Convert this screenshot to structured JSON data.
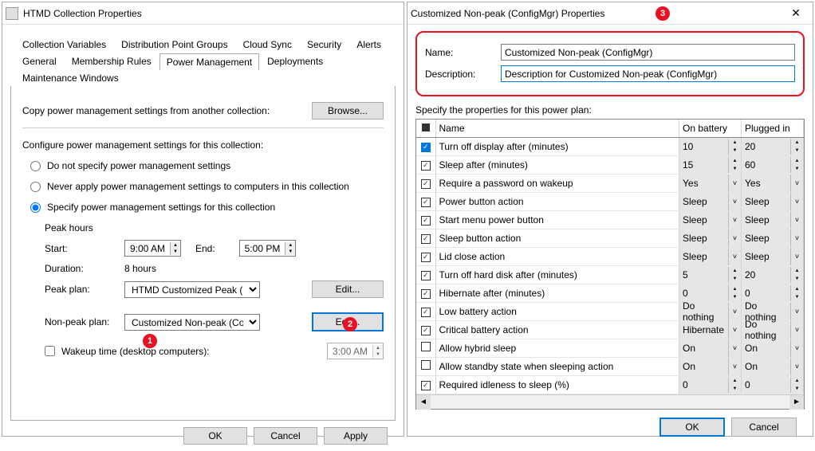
{
  "left": {
    "title": "HTMD Collection Properties",
    "tabs_row1": [
      "Collection Variables",
      "Distribution Point Groups",
      "Cloud Sync",
      "Security",
      "Alerts"
    ],
    "tabs_row2": [
      "General",
      "Membership Rules",
      "Power Management",
      "Deployments",
      "Maintenance Windows"
    ],
    "active_tab": "Power Management",
    "copy_label": "Copy power management settings from another collection:",
    "browse": "Browse...",
    "configure_label": "Configure power management settings for this collection:",
    "radio1": "Do not specify power management settings",
    "radio2": "Never apply power management settings to computers in this collection",
    "radio3": "Specify power management settings for this collection",
    "radio_selected": 3,
    "peak_hours_label": "Peak hours",
    "start_label": "Start:",
    "start_value": "9:00 AM",
    "end_label": "End:",
    "end_value": "5:00 PM",
    "duration_label": "Duration:",
    "duration_value": "8 hours",
    "peak_plan_label": "Peak plan:",
    "peak_plan_value": "HTMD Customized Peak (Con",
    "edit": "Edit...",
    "nonpeak_label": "Non-peak plan:",
    "nonpeak_value": "Customized Non-peak (Config",
    "wakeup_label": "Wakeup time (desktop computers):",
    "wakeup_value": "3:00 AM",
    "ok": "OK",
    "cancel": "Cancel",
    "apply": "Apply"
  },
  "right": {
    "title": "Customized Non-peak (ConfigMgr) Properties",
    "name_label": "Name:",
    "name_value": "Customized Non-peak (ConfigMgr)",
    "desc_label": "Description:",
    "desc_value": "Description for Customized Non-peak (ConfigMgr)",
    "specify_label": "Specify the properties for this power plan:",
    "col_name": "Name",
    "col_bat": "On battery",
    "col_plug": "Plugged in",
    "rows": [
      {
        "chk": true,
        "filled": true,
        "name": "Turn off display after (minutes)",
        "bat": "10",
        "plug": "20",
        "ctrl": "spin"
      },
      {
        "chk": true,
        "filled": false,
        "name": "Sleep after (minutes)",
        "bat": "15",
        "plug": "60",
        "ctrl": "spin"
      },
      {
        "chk": true,
        "filled": false,
        "name": "Require a password on wakeup",
        "bat": "Yes",
        "plug": "Yes",
        "ctrl": "drop"
      },
      {
        "chk": true,
        "filled": false,
        "name": "Power button action",
        "bat": "Sleep",
        "plug": "Sleep",
        "ctrl": "drop"
      },
      {
        "chk": true,
        "filled": false,
        "name": "Start menu power button",
        "bat": "Sleep",
        "plug": "Sleep",
        "ctrl": "drop"
      },
      {
        "chk": true,
        "filled": false,
        "name": "Sleep button action",
        "bat": "Sleep",
        "plug": "Sleep",
        "ctrl": "drop"
      },
      {
        "chk": true,
        "filled": false,
        "name": "Lid close action",
        "bat": "Sleep",
        "plug": "Sleep",
        "ctrl": "drop"
      },
      {
        "chk": true,
        "filled": false,
        "name": "Turn off hard disk after (minutes)",
        "bat": "5",
        "plug": "20",
        "ctrl": "spin"
      },
      {
        "chk": true,
        "filled": false,
        "name": "Hibernate after (minutes)",
        "bat": "0",
        "plug": "0",
        "ctrl": "spin"
      },
      {
        "chk": true,
        "filled": false,
        "name": "Low battery action",
        "bat": "Do nothing",
        "plug": "Do nothing",
        "ctrl": "drop"
      },
      {
        "chk": true,
        "filled": false,
        "name": "Critical battery action",
        "bat": "Hibernate",
        "plug": "Do nothing",
        "ctrl": "drop"
      },
      {
        "chk": false,
        "filled": false,
        "name": "Allow hybrid sleep",
        "bat": "On",
        "plug": "On",
        "ctrl": "drop"
      },
      {
        "chk": false,
        "filled": false,
        "name": "Allow standby state when sleeping action",
        "bat": "On",
        "plug": "On",
        "ctrl": "drop"
      },
      {
        "chk": true,
        "filled": false,
        "name": "Required idleness to sleep (%)",
        "bat": "0",
        "plug": "0",
        "ctrl": "spin"
      }
    ],
    "ok": "OK",
    "cancel": "Cancel"
  },
  "badges": {
    "b1": "1",
    "b2": "2",
    "b3": "3"
  },
  "colors": {
    "accent": "#0078d7",
    "badge": "#e81123",
    "border": "#7a7a7a"
  }
}
